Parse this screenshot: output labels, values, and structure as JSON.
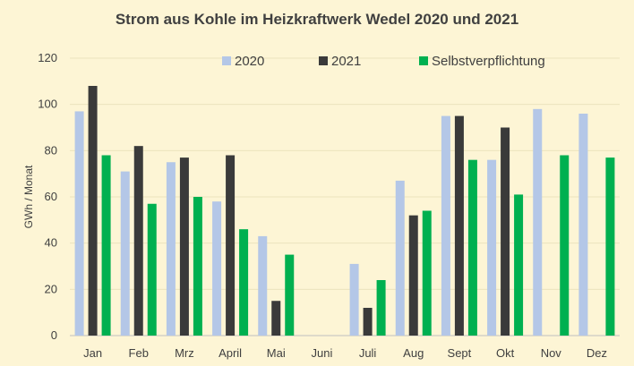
{
  "chart_data": {
    "type": "bar",
    "title": "Strom aus Kohle im Heizkraftwerk Wedel 2020 und 2021",
    "xlabel": "",
    "ylabel": "GWh / Monat",
    "ylim": [
      0,
      120
    ],
    "yticks": [
      0,
      20,
      40,
      60,
      80,
      100,
      120
    ],
    "grid": true,
    "legend_position": "top",
    "categories": [
      "Jan",
      "Feb",
      "Mrz",
      "April",
      "Mai",
      "Juni",
      "Juli",
      "Aug",
      "Sept",
      "Okt",
      "Nov",
      "Dez"
    ],
    "series": [
      {
        "name": "2020",
        "color": "#b4c7e7",
        "values": [
          97,
          71,
          75,
          58,
          43,
          null,
          31,
          67,
          95,
          76,
          98,
          96
        ]
      },
      {
        "name": "2021",
        "color": "#3a3a3a",
        "values": [
          108,
          82,
          77,
          78,
          15,
          null,
          12,
          52,
          95,
          90,
          null,
          null
        ]
      },
      {
        "name": "Selbstverpflichtung",
        "color": "#00b050",
        "values": [
          78,
          57,
          60,
          46,
          35,
          null,
          24,
          54,
          76,
          61,
          78,
          77
        ]
      }
    ]
  }
}
